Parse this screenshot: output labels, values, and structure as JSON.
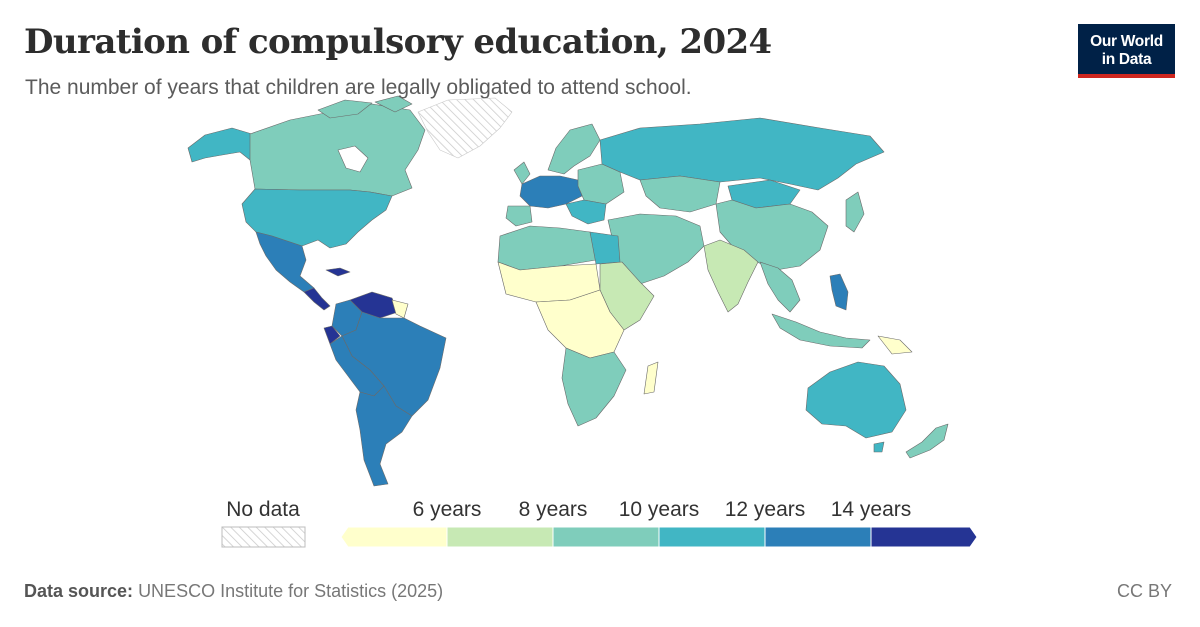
{
  "header": {
    "title": "Duration of compulsory education, 2024",
    "subtitle": "The number of years that children are legally obligated to attend school."
  },
  "logo": {
    "line1": "Our World",
    "line2": "in Data"
  },
  "legend": {
    "no_data_label": "No data",
    "tick_labels": [
      "6 years",
      "8 years",
      "10 years",
      "12 years",
      "14 years"
    ],
    "bins": [
      {
        "range": "<6",
        "color": "#ffffcc"
      },
      {
        "range": "6–8",
        "color": "#c7e9b4"
      },
      {
        "range": "8–10",
        "color": "#7fcdbb"
      },
      {
        "range": "10–12",
        "color": "#41b6c4"
      },
      {
        "range": "12–14",
        "color": "#2c7fb8"
      },
      {
        "range": ">14",
        "color": "#253494"
      }
    ]
  },
  "regions": [
    {
      "name": "Canada",
      "bin": "8–10"
    },
    {
      "name": "United States",
      "bin": "10–12"
    },
    {
      "name": "Mexico",
      "bin": "12–14"
    },
    {
      "name": "Central America",
      "bin": ">14"
    },
    {
      "name": "Venezuela",
      "bin": ">14"
    },
    {
      "name": "Colombia",
      "bin": "12–14"
    },
    {
      "name": "Ecuador",
      "bin": ">14"
    },
    {
      "name": "Brazil",
      "bin": "12–14"
    },
    {
      "name": "Argentina",
      "bin": "12–14"
    },
    {
      "name": "Greenland",
      "bin": "No data"
    },
    {
      "name": "Western Europe",
      "bin": "12–14"
    },
    {
      "name": "Northern Europe",
      "bin": "8–10"
    },
    {
      "name": "Russia",
      "bin": "10–12"
    },
    {
      "name": "Central Asia",
      "bin": "8–10"
    },
    {
      "name": "Mongolia",
      "bin": "10–12"
    },
    {
      "name": "China",
      "bin": "8–10"
    },
    {
      "name": "India",
      "bin": "6–8"
    },
    {
      "name": "Middle East",
      "bin": "8–10"
    },
    {
      "name": "North Africa",
      "bin": "8–10"
    },
    {
      "name": "Egypt",
      "bin": "10–12"
    },
    {
      "name": "Sahel",
      "bin": "<6"
    },
    {
      "name": "Central Africa",
      "bin": "<6"
    },
    {
      "name": "East Africa",
      "bin": "6–8"
    },
    {
      "name": "Southern Africa",
      "bin": "8–10"
    },
    {
      "name": "Madagascar",
      "bin": "<6"
    },
    {
      "name": "Australia",
      "bin": "10–12"
    },
    {
      "name": "New Zealand",
      "bin": "8–10"
    },
    {
      "name": "Philippines",
      "bin": "12–14"
    },
    {
      "name": "Japan",
      "bin": "8–10"
    }
  ],
  "footer": {
    "source_label": "Data source:",
    "source_text": "UNESCO Institute for Statistics (2025)",
    "license": "CC BY"
  }
}
